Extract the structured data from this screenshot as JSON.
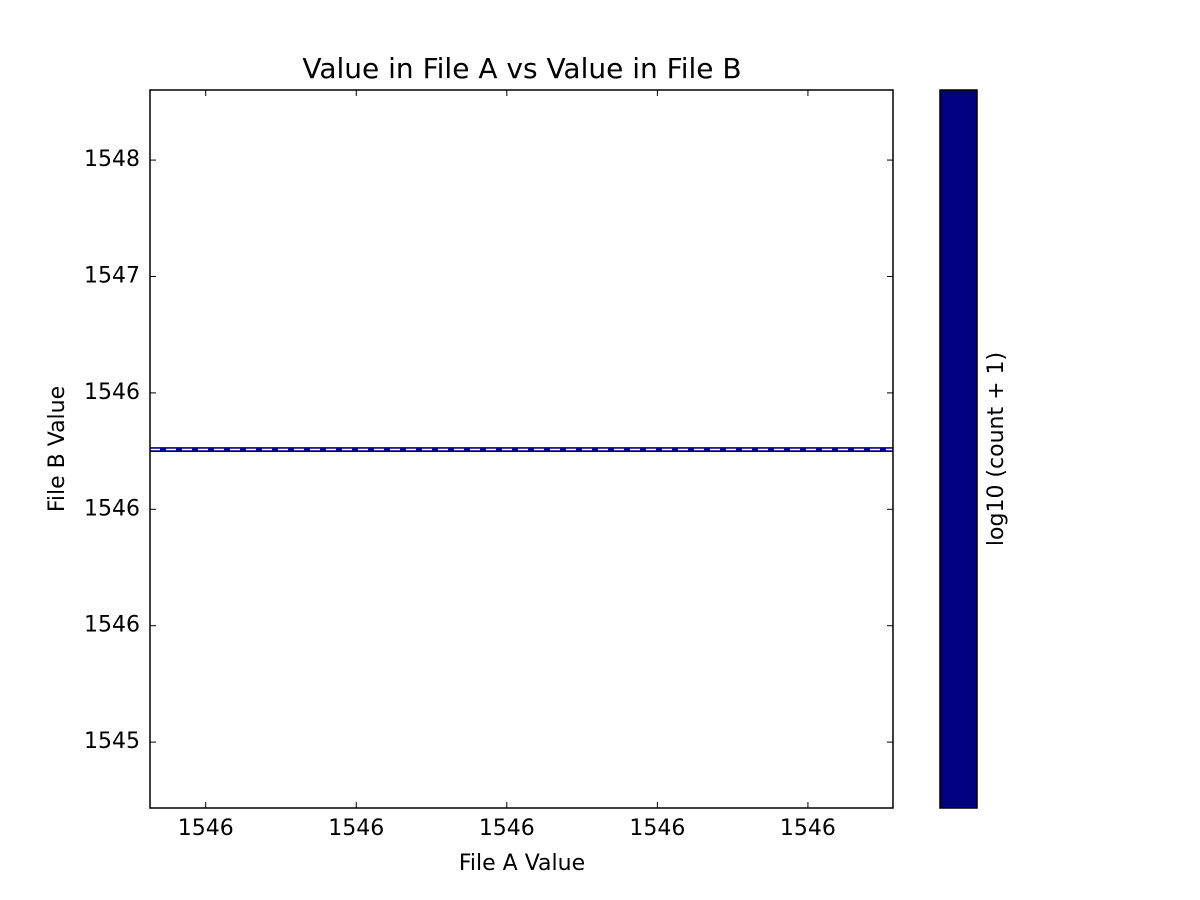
{
  "chart_data": {
    "type": "hist2d",
    "title": "Value in File A vs Value in File B",
    "xlabel": "File A Value",
    "ylabel": "File B Value",
    "colorbar_label": "log10 (count + 1)",
    "colorbar_color": "#000080",
    "xlim": [
      1545.526,
      1546.513
    ],
    "ylim": [
      1544.717,
      1547.801
    ],
    "xticks": [
      {
        "value": 1545.6,
        "label": "1546"
      },
      {
        "value": 1545.8,
        "label": "1546"
      },
      {
        "value": 1546.0,
        "label": "1546"
      },
      {
        "value": 1546.2,
        "label": "1546"
      },
      {
        "value": 1546.4,
        "label": "1546"
      }
    ],
    "yticks": [
      {
        "value": 1545.0,
        "label": "1545"
      },
      {
        "value": 1545.5,
        "label": "1546"
      },
      {
        "value": 1546.0,
        "label": "1546"
      },
      {
        "value": 1546.5,
        "label": "1546"
      },
      {
        "value": 1547.0,
        "label": "1547"
      },
      {
        "value": 1547.5,
        "label": "1548"
      }
    ],
    "x_edges": [
      1545.526,
      1546.513
    ],
    "y_edges": [
      1546.246,
      1546.267
    ],
    "color": "#000080",
    "ref_line": {
      "y": 1546.257,
      "color": "#ffffff",
      "style": "dashed"
    }
  }
}
